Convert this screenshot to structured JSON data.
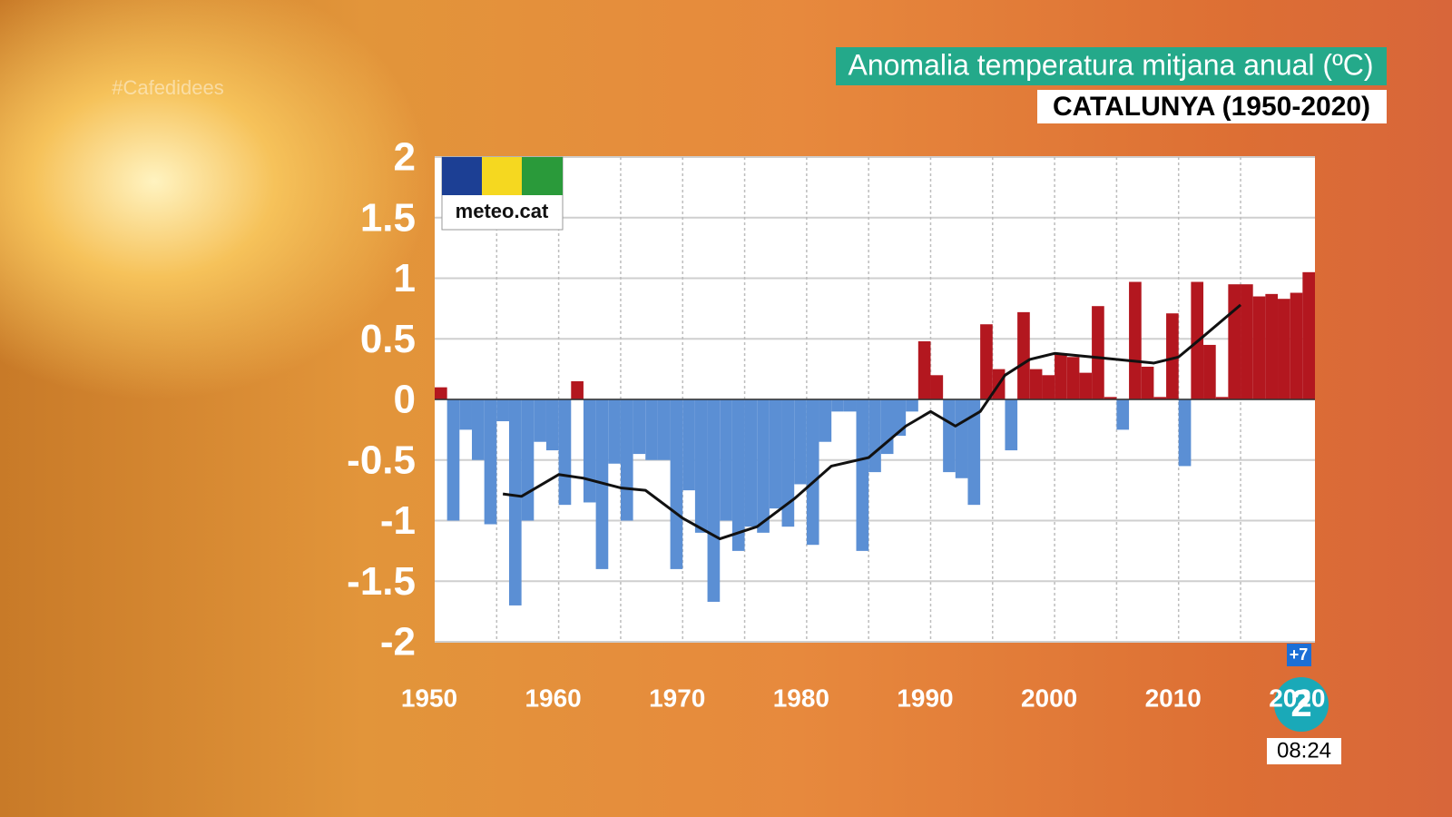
{
  "chart_data": {
    "type": "bar",
    "title": "Anomalia temperatura mitjana anual (ºC)",
    "subtitle": "CATALUNYA (1950-2020)",
    "x": [
      1950,
      1951,
      1952,
      1953,
      1954,
      1955,
      1956,
      1957,
      1958,
      1959,
      1960,
      1961,
      1962,
      1963,
      1964,
      1965,
      1966,
      1967,
      1968,
      1969,
      1970,
      1971,
      1972,
      1973,
      1974,
      1975,
      1976,
      1977,
      1978,
      1979,
      1980,
      1981,
      1982,
      1983,
      1984,
      1985,
      1986,
      1987,
      1988,
      1989,
      1990,
      1991,
      1992,
      1993,
      1994,
      1995,
      1996,
      1997,
      1998,
      1999,
      2000,
      2001,
      2002,
      2003,
      2004,
      2005,
      2006,
      2007,
      2008,
      2009,
      2010,
      2011,
      2012,
      2013,
      2014,
      2015,
      2016,
      2017,
      2018,
      2019,
      2020
    ],
    "values": [
      0.1,
      -1.0,
      -0.25,
      -0.5,
      -1.03,
      -0.18,
      -1.7,
      -1.0,
      -0.35,
      -0.42,
      -0.87,
      0.15,
      -0.85,
      -1.4,
      -0.53,
      -1.0,
      -0.45,
      -0.5,
      -0.5,
      -1.4,
      -0.75,
      -1.1,
      -1.67,
      -1.0,
      -1.25,
      -1.05,
      -1.1,
      -0.9,
      -1.05,
      -0.7,
      -1.2,
      -0.35,
      -0.1,
      -0.1,
      -1.25,
      -0.6,
      -0.45,
      -0.3,
      -0.1,
      0.48,
      0.2,
      -0.6,
      -0.65,
      -0.87,
      0.62,
      0.25,
      -0.42,
      0.72,
      0.25,
      0.2,
      0.37,
      0.35,
      0.22,
      0.77,
      0.02,
      -0.25,
      0.97,
      0.27,
      0.02,
      0.71,
      -0.55,
      0.97,
      0.45,
      0.02,
      0.95,
      0.95,
      0.85,
      0.87,
      0.83,
      0.88,
      1.05
    ],
    "positive_color": "#b3171f",
    "negative_color": "#5b8fd4",
    "trend": {
      "color": "#111111",
      "x": [
        1955.5,
        1957,
        1960,
        1962,
        1965,
        1967,
        1970,
        1973,
        1976,
        1979,
        1982,
        1985,
        1988,
        1990,
        1992,
        1994,
        1996,
        1998,
        2000,
        2003,
        2006,
        2008,
        2010,
        2012,
        2015
      ],
      "values": [
        -0.78,
        -0.8,
        -0.62,
        -0.65,
        -0.73,
        -0.75,
        -0.98,
        -1.15,
        -1.05,
        -0.82,
        -0.55,
        -0.48,
        -0.22,
        -0.1,
        -0.22,
        -0.1,
        0.2,
        0.33,
        0.38,
        0.35,
        0.32,
        0.3,
        0.35,
        0.52,
        0.78
      ]
    },
    "xlim": [
      1950,
      2021
    ],
    "ylim": [
      -2,
      2
    ],
    "xticks": [
      1950,
      1960,
      1970,
      1980,
      1990,
      2000,
      2010,
      2020
    ],
    "xgrid": [
      1955,
      1960,
      1965,
      1970,
      1975,
      1980,
      1985,
      1990,
      1995,
      2000,
      2005,
      2010,
      2015
    ],
    "yticks": [
      2,
      1.5,
      1,
      0.5,
      0,
      -0.5,
      -1,
      -1.5,
      -2
    ],
    "grid": true,
    "source_logo": "meteo.cat"
  },
  "overlay": {
    "hashtag": "#Cafedidees",
    "channel": "2",
    "badge": "+7",
    "clock": "08:24"
  }
}
